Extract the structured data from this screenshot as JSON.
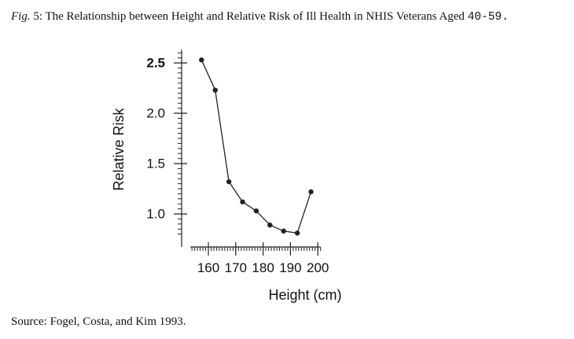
{
  "caption": {
    "fig_label": "Fig.",
    "title_text": " 5: The Relationship between Height and Relative Risk of Ill Health in NHIS Veterans Aged ",
    "age_range": "40-59."
  },
  "source": "Source: Fogel, Costa, and Kim 1993.",
  "chart_data": {
    "type": "line",
    "title": "",
    "xlabel": "Height (cm)",
    "ylabel": "Relative Risk",
    "xlim": [
      154,
      201
    ],
    "ylim": [
      0.78,
      2.6
    ],
    "x_ticks": [
      160,
      170,
      180,
      190,
      200
    ],
    "x_tick_labels": [
      "160",
      "170",
      "180",
      "190",
      "200"
    ],
    "y_ticks": [
      1.0,
      1.5,
      2.0,
      2.5
    ],
    "y_tick_labels": [
      "1.0",
      "1.5",
      "2.0",
      "2.5"
    ],
    "series": [
      {
        "x": [
          157.5,
          162.5,
          167.5,
          172.5,
          177.5,
          182.5,
          187.5,
          192.5,
          197.5
        ],
        "y": [
          2.53,
          2.23,
          1.32,
          1.12,
          1.03,
          0.89,
          0.83,
          0.81,
          1.22
        ]
      }
    ],
    "grid": false,
    "line_color": "#222222"
  }
}
